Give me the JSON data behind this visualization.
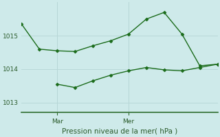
{
  "title": "Pression niveau de la mer( hPa )",
  "background_color": "#ceeaea",
  "grid_color": "#b8d8d8",
  "line_color": "#1a6b1a",
  "border_color": "#2d6b2d",
  "ylabel_values": [
    1013,
    1014,
    1015
  ],
  "x_tick_positions": [
    0.18,
    0.5
  ],
  "x_tick_labels": [
    "Mar",
    "Mer"
  ],
  "line1_x": [
    0,
    1,
    2,
    3,
    4,
    5,
    6,
    7,
    8,
    9,
    10,
    11
  ],
  "line1_y": [
    1015.35,
    1014.6,
    1014.55,
    1014.53,
    1014.7,
    1014.85,
    1015.05,
    1015.5,
    1015.7,
    1015.05,
    1014.1,
    1014.15
  ],
  "line2_x": [
    2,
    3,
    4,
    5,
    6,
    7,
    8,
    9,
    10,
    11
  ],
  "line2_y": [
    1013.55,
    1013.45,
    1013.65,
    1013.82,
    1013.95,
    1014.05,
    1013.98,
    1013.95,
    1014.05,
    1014.15
  ],
  "ylim": [
    1012.7,
    1016.0
  ],
  "xlim": [
    0,
    11
  ]
}
